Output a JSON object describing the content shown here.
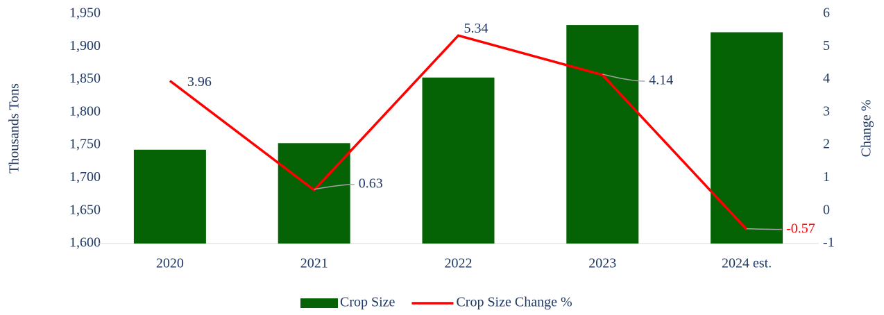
{
  "chart_data": {
    "type": "bar",
    "categories": [
      "2020",
      "2021",
      "2022",
      "2023",
      "2024 est."
    ],
    "ylabel": "Thousands Tons",
    "y2label": "Change %",
    "ylim": [
      1600,
      1950
    ],
    "yticks": [
      {
        "value": 1600,
        "label": "1,600"
      },
      {
        "value": 1650,
        "label": "1,650"
      },
      {
        "value": 1700,
        "label": "1,700"
      },
      {
        "value": 1750,
        "label": "1,750"
      },
      {
        "value": 1800,
        "label": "1,800"
      },
      {
        "value": 1850,
        "label": "1,850"
      },
      {
        "value": 1900,
        "label": "1,900"
      },
      {
        "value": 1950,
        "label": "1,950"
      }
    ],
    "y2lim": [
      -1,
      6
    ],
    "y2ticks": [
      -1,
      0,
      1,
      2,
      3,
      4,
      5,
      6
    ],
    "legend": "bottom",
    "series": [
      {
        "name": "Crop Size",
        "type": "bar",
        "color": "#056205",
        "values": [
          1743,
          1753,
          1853,
          1933,
          1922
        ]
      },
      {
        "name": "Crop Size Change %",
        "type": "line",
        "axis": "y2",
        "color": "#ff0000",
        "values": [
          3.96,
          0.63,
          5.34,
          4.14,
          -0.57
        ]
      }
    ]
  }
}
